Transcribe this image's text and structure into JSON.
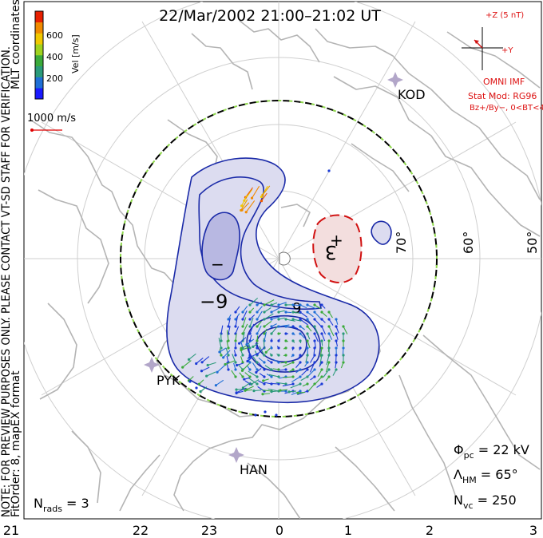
{
  "title": "22/Mar/2002 21:00–21:02 UT",
  "side_notes": {
    "coordinates": "MLT coordinates",
    "preview": "NOTE: FOR PREVIEW PURPOSES ONLY. PLEASE CONTACT VT-SD STAFF FOR VERIFICATION.",
    "fit": "FitOrder: 8, mapEX format"
  },
  "colorbar": {
    "label": "Vel [m/s]",
    "ticks": [
      "600",
      "400",
      "200"
    ],
    "colors": [
      "#1a1aff",
      "#1f6fd6",
      "#2a9a7a",
      "#3aaa3a",
      "#9fd21e",
      "#f0c800",
      "#f08a00",
      "#e82000"
    ]
  },
  "reference_vector": {
    "label": "1000 m/s",
    "color": "#e00000"
  },
  "imf": {
    "scale_label": "+Z (5 nT)",
    "y_label": "+Y",
    "source": "OMNI IMF",
    "model": "Stat Mod: RG96",
    "condition": "Bz+/By−, 0<BT<4",
    "color": "#d11111"
  },
  "stations": [
    {
      "id": "kod",
      "name": "KOD"
    },
    {
      "id": "pyk",
      "name": "PYK"
    },
    {
      "id": "han",
      "name": "HAN"
    }
  ],
  "latitude_labels": [
    "70°",
    "60°",
    "50°"
  ],
  "contours": {
    "neg_label": "−9",
    "neg_mark": "−",
    "pos_label": "3",
    "pos_mark": "+",
    "min_label": "9",
    "neg_color": "#1a2aa8",
    "neg_fill": "#dcdcf0",
    "pos_color": "#d11111",
    "pos_fill": "#f3dede"
  },
  "stats": {
    "phi_symbol": "Φ",
    "phi_sub": "pc",
    "phi_value": " = 22 kV",
    "lambda_symbol": "Λ",
    "lambda_sub": "HM",
    "lambda_value": " = 65°",
    "nvc_symbol": "N",
    "nvc_sub": "vc",
    "nvc_value": " = 250",
    "nrads_symbol": "N",
    "nrads_sub": "rads",
    "nrads_value": " = 3"
  },
  "mlt_labels": [
    "21",
    "22",
    "23",
    "0",
    "1",
    "2",
    "3"
  ]
}
